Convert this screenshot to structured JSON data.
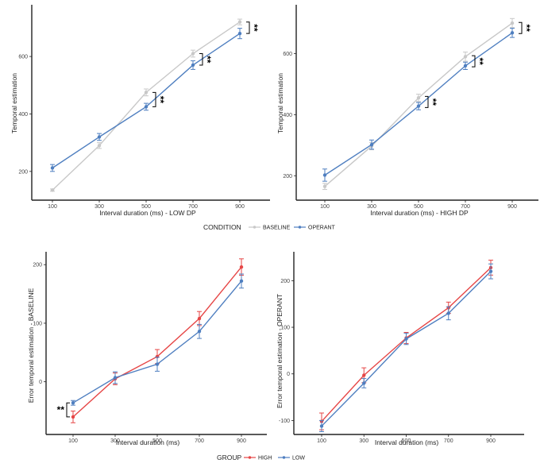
{
  "colors": {
    "BASELINE": "#c8c8c8",
    "OPERANT": "#4f7fc0",
    "HIGH": "#e64646",
    "LOW": "#4f7fc0",
    "axis": "#222222",
    "text": "#222222"
  },
  "legends": [
    {
      "title": "CONDITION",
      "items": [
        "BASELINE",
        "OPERANT"
      ]
    },
    {
      "title": "GROUP",
      "items": [
        "HIGH",
        "LOW"
      ]
    }
  ],
  "chart_data": [
    {
      "type": "line",
      "panel": "top-left",
      "title": "",
      "xlabel": "Interval duration (ms) - LOW DP",
      "ylabel": "Temporal estimation",
      "categories": [
        "100",
        "300",
        "500",
        "700",
        "900"
      ],
      "ylim": [
        100,
        780
      ],
      "yticks": [
        200,
        400,
        600
      ],
      "series": [
        {
          "name": "BASELINE",
          "values": [
            135,
            290,
            475,
            610,
            720
          ],
          "errors": [
            4,
            10,
            12,
            12,
            10
          ]
        },
        {
          "name": "OPERANT",
          "values": [
            212,
            320,
            425,
            570,
            680
          ],
          "errors": [
            12,
            12,
            12,
            15,
            18
          ]
        }
      ],
      "significance": [
        {
          "x": "500",
          "label": "**"
        },
        {
          "x": "700",
          "label": "**"
        },
        {
          "x": "900",
          "label": "**"
        }
      ]
    },
    {
      "type": "line",
      "panel": "top-right",
      "title": "",
      "xlabel": "Interval duration (ms) - HIGH DP",
      "ylabel": "Temporal estimation",
      "categories": [
        "100",
        "300",
        "500",
        "700",
        "900"
      ],
      "ylim": [
        120,
        760
      ],
      "yticks": [
        200,
        400,
        600
      ],
      "series": [
        {
          "name": "BASELINE",
          "values": [
            165,
            297,
            455,
            590,
            700
          ],
          "errors": [
            10,
            12,
            12,
            15,
            15
          ]
        },
        {
          "name": "OPERANT",
          "values": [
            202,
            302,
            428,
            560,
            668
          ],
          "errors": [
            20,
            15,
            12,
            12,
            15
          ]
        }
      ],
      "significance": [
        {
          "x": "500",
          "label": "**"
        },
        {
          "x": "700",
          "label": "**"
        },
        {
          "x": "900",
          "label": "**"
        }
      ]
    },
    {
      "type": "line",
      "panel": "bottom-left",
      "title": "",
      "xlabel": "Interval duration (ms)",
      "ylabel": "Error temporal estimation - BASELINE",
      "categories": [
        "100",
        "300",
        "500",
        "700",
        "900"
      ],
      "ylim": [
        -90,
        222
      ],
      "yticks": [
        0,
        100,
        200
      ],
      "series": [
        {
          "name": "HIGH",
          "values": [
            -60,
            5,
            43,
            108,
            196
          ],
          "errors": [
            10,
            10,
            12,
            12,
            14
          ]
        },
        {
          "name": "LOW",
          "values": [
            -36,
            7,
            30,
            86,
            172
          ],
          "errors": [
            4,
            10,
            12,
            12,
            12
          ]
        }
      ],
      "significance": [
        {
          "x": "100",
          "label": "**"
        }
      ]
    },
    {
      "type": "line",
      "panel": "bottom-right",
      "title": "",
      "xlabel": "Interval duration (ms)",
      "ylabel": "Error temporal estimation - OPERANT",
      "categories": [
        "100",
        "300",
        "500",
        "700",
        "900"
      ],
      "ylim": [
        -130,
        262
      ],
      "yticks": [
        -100,
        0,
        100,
        200
      ],
      "series": [
        {
          "name": "HIGH",
          "values": [
            -102,
            -3,
            77,
            142,
            228
          ],
          "errors": [
            18,
            16,
            12,
            12,
            16
          ]
        },
        {
          "name": "LOW",
          "values": [
            -112,
            -20,
            75,
            130,
            220
          ],
          "errors": [
            12,
            10,
            12,
            14,
            16
          ]
        }
      ],
      "significance": []
    }
  ]
}
